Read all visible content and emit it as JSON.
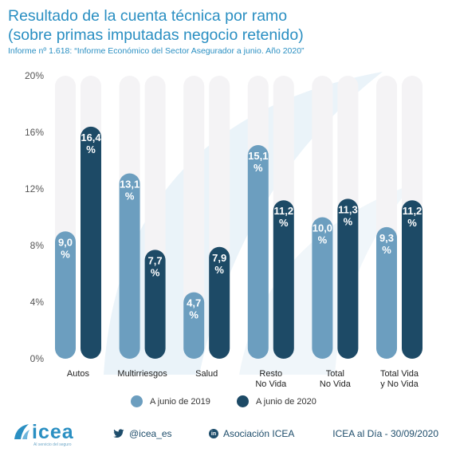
{
  "header": {
    "title_line1": "Resultado de la cuenta técnica por ramo",
    "title_line2": "(sobre primas imputadas negocio retenido)",
    "subtitle": "Informe nº 1.618: “Informe Económico del Sector Asegurador a junio. Año 2020”"
  },
  "colors": {
    "series_2019": "#6c9ebf",
    "series_2020": "#1d4a66",
    "track": "#f4f3f5",
    "title": "#2a8fc2"
  },
  "chart_data": {
    "type": "bar",
    "categories": [
      "Autos",
      "Multirriesgos",
      "Salud",
      "Resto\nNo Vida",
      "Total\nNo Vida",
      "Total Vida\ny No Vida"
    ],
    "series": [
      {
        "name": "A junio de 2019",
        "values": [
          9.0,
          13.1,
          4.7,
          15.1,
          10.0,
          9.3
        ],
        "labels": [
          "9,0\n%",
          "13,1\n%",
          "4,7\n%",
          "15,1\n%",
          "10,0\n%",
          "9,3\n%"
        ]
      },
      {
        "name": "A junio de 2020",
        "values": [
          16.4,
          7.7,
          7.9,
          11.2,
          11.3,
          11.2
        ],
        "labels": [
          "16,4\n%",
          "7,7\n%",
          "7,9\n%",
          "11,2\n%",
          "11,3\n%",
          "11,2\n%"
        ]
      }
    ],
    "yticks": [
      "20%",
      "16%",
      "12%",
      "8%",
      "4%",
      "0%"
    ],
    "ylim": [
      0,
      20
    ],
    "grid": false,
    "legend": "bottom"
  },
  "legend": {
    "item_2019": "A junio de 2019",
    "item_2020": "A junio de 2020"
  },
  "footer": {
    "logo_text": "icea",
    "logo_sub": "Al servicio del seguro",
    "twitter": "@icea_es",
    "linkedin_icon_text": "in",
    "linkedin": "Asociación ICEA",
    "date": "ICEA al Día - 30/09/2020"
  }
}
